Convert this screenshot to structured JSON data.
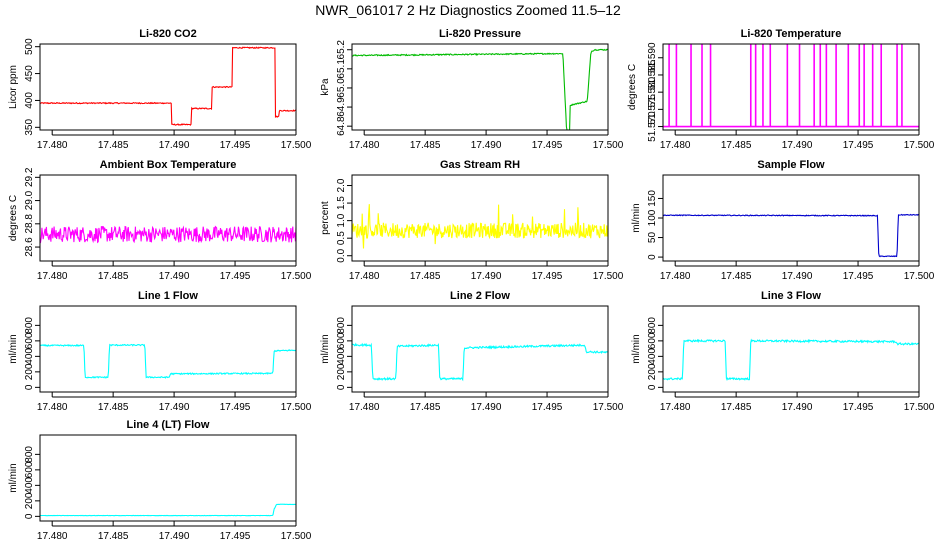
{
  "title": "NWR_061017  2 Hz Diagnostics Zoomed 11.5–12",
  "chart_data": [
    {
      "type": "line",
      "title": "Li-820 CO2",
      "ylabel": "Licor ppm",
      "color": "#ff0000",
      "xlim": [
        17.479,
        17.5
      ],
      "xticks": [
        "17.480",
        "17.485",
        "17.490",
        "17.495",
        "17.500"
      ],
      "ylim": [
        345,
        505
      ],
      "yticks": [
        "350",
        "400",
        "450",
        "500"
      ],
      "noise": 1,
      "x": [
        17.479,
        17.4898,
        17.4898,
        17.4914,
        17.4914,
        17.4931,
        17.4931,
        17.4948,
        17.4948,
        17.4983,
        17.4983,
        17.4986,
        17.4986,
        17.5
      ],
      "y": [
        395,
        395,
        355,
        355,
        385,
        385,
        425,
        425,
        498,
        498,
        370,
        370,
        381,
        381
      ]
    },
    {
      "type": "line",
      "title": "Li-820 Pressure",
      "ylabel": "kPa",
      "color": "#00bb00",
      "xlim": [
        17.479,
        17.5
      ],
      "xticks": [
        "17.480",
        "17.485",
        "17.490",
        "17.495",
        "17.500"
      ],
      "ylim": [
        64.78,
        65.23
      ],
      "yticks": [
        "64.8",
        "64.9",
        "65.0",
        "65.1",
        "65.2"
      ],
      "noise": 0.003,
      "x": [
        17.479,
        17.4963,
        17.4966,
        17.4969,
        17.4969,
        17.4983,
        17.4986,
        17.4989,
        17.5
      ],
      "y": [
        65.17,
        65.18,
        64.78,
        64.78,
        64.91,
        64.93,
        65.19,
        65.2,
        65.2
      ]
    },
    {
      "type": "line",
      "title": "Li-820 Temperature",
      "ylabel": "degrees C",
      "color": "#ff00ff",
      "xlim": [
        17.479,
        17.5
      ],
      "xticks": [
        "17.480",
        "17.485",
        "17.490",
        "17.495",
        "17.500"
      ],
      "ylim": [
        51.569,
        51.594
      ],
      "yticks": [
        "51.570",
        "51.575",
        "51.580",
        "51.585",
        "51.590"
      ],
      "noise": 0,
      "base": 51.57,
      "spike_to": 51.594,
      "spikes": [
        17.4795,
        17.4801,
        17.4813,
        17.4822,
        17.4829,
        17.4862,
        17.4866,
        17.4872,
        17.4878,
        17.4892,
        17.4902,
        17.4914,
        17.4919,
        17.4924,
        17.4932,
        17.4942,
        17.4951,
        17.4955,
        17.4962,
        17.4969,
        17.4982,
        17.4986
      ]
    },
    {
      "type": "line",
      "title": "Ambient Box Temperature",
      "ylabel": "degrees C",
      "color": "#ff00ff",
      "xlim": [
        17.479,
        17.5
      ],
      "xticks": [
        "17.480",
        "17.485",
        "17.490",
        "17.495",
        "17.500"
      ],
      "ylim": [
        28.48,
        29.22
      ],
      "yticks": [
        "28.6",
        "28.8",
        "29.0",
        "29.2"
      ],
      "noise": 0.07,
      "x": [
        17.479,
        17.5
      ],
      "y": [
        28.71,
        28.71
      ]
    },
    {
      "type": "line",
      "title": "Gas Stream RH",
      "ylabel": "percent",
      "color": "#ffff00",
      "xlim": [
        17.479,
        17.5
      ],
      "xticks": [
        "17.480",
        "17.485",
        "17.490",
        "17.495",
        "17.500"
      ],
      "ylim": [
        -0.15,
        2.3
      ],
      "yticks": [
        "0.0",
        "0.5",
        "1.0",
        "1.5",
        "2.0"
      ],
      "noise": 0.22,
      "x": [
        17.479,
        17.5
      ],
      "y": [
        0.72,
        0.72
      ]
    },
    {
      "type": "line",
      "title": "Sample Flow",
      "ylabel": "ml/min",
      "color": "#0000cc",
      "xlim": [
        17.479,
        17.5
      ],
      "xticks": [
        "17.480",
        "17.485",
        "17.490",
        "17.495",
        "17.500"
      ],
      "ylim": [
        -10,
        210
      ],
      "yticks": [
        "0",
        "50",
        "100",
        "150"
      ],
      "noise": 1,
      "x": [
        17.479,
        17.4966,
        17.4967,
        17.4982,
        17.4983,
        17.5
      ],
      "y": [
        107,
        106,
        2,
        2,
        108,
        108
      ]
    },
    {
      "type": "line",
      "title": "Line 1 Flow",
      "ylabel": "ml/min",
      "color": "#00ffff",
      "xlim": [
        17.479,
        17.5
      ],
      "xticks": [
        "17.480",
        "17.485",
        "17.490",
        "17.495",
        "17.500"
      ],
      "ylim": [
        -60,
        1050
      ],
      "yticks": [
        "0",
        "200",
        "400",
        "600",
        "800"
      ],
      "noise": 8,
      "x": [
        17.479,
        17.4826,
        17.4827,
        17.4846,
        17.4847,
        17.4876,
        17.4877,
        17.4896,
        17.4897,
        17.4981,
        17.4982,
        17.5
      ],
      "y": [
        540,
        540,
        130,
        130,
        545,
        545,
        130,
        130,
        175,
        180,
        470,
        480
      ]
    },
    {
      "type": "line",
      "title": "Line 2 Flow",
      "ylabel": "ml/min",
      "color": "#00ffff",
      "xlim": [
        17.479,
        17.5
      ],
      "xticks": [
        "17.480",
        "17.485",
        "17.490",
        "17.495",
        "17.500"
      ],
      "ylim": [
        -60,
        1050
      ],
      "yticks": [
        "0",
        "200",
        "400",
        "600",
        "800"
      ],
      "noise": 12,
      "x": [
        17.479,
        17.4806,
        17.4807,
        17.4826,
        17.4827,
        17.4861,
        17.4862,
        17.4881,
        17.4882,
        17.4981,
        17.4982,
        17.5
      ],
      "y": [
        550,
        545,
        110,
        110,
        530,
        545,
        110,
        110,
        510,
        545,
        460,
        450
      ]
    },
    {
      "type": "line",
      "title": "Line 3 Flow",
      "ylabel": "ml/min",
      "color": "#00ffff",
      "xlim": [
        17.479,
        17.5
      ],
      "xticks": [
        "17.480",
        "17.485",
        "17.490",
        "17.495",
        "17.500"
      ],
      "ylim": [
        -60,
        1050
      ],
      "yticks": [
        "0",
        "200",
        "400",
        "600",
        "800"
      ],
      "noise": 12,
      "x": [
        17.479,
        17.4806,
        17.4807,
        17.4841,
        17.4842,
        17.4861,
        17.4862,
        17.4981,
        17.4982,
        17.5
      ],
      "y": [
        110,
        110,
        600,
        600,
        110,
        110,
        600,
        590,
        560,
        560
      ]
    },
    {
      "type": "line",
      "title": "Line 4 (LT) Flow",
      "ylabel": "ml/min",
      "color": "#00ffff",
      "xlim": [
        17.479,
        17.5
      ],
      "xticks": [
        "17.480",
        "17.485",
        "17.490",
        "17.495",
        "17.500"
      ],
      "ylim": [
        -60,
        1050
      ],
      "yticks": [
        "0",
        "200",
        "400",
        "600",
        "800"
      ],
      "noise": 2,
      "x": [
        17.479,
        17.4981,
        17.4982,
        17.4984,
        17.5
      ],
      "y": [
        10,
        10,
        90,
        155,
        155
      ]
    }
  ]
}
